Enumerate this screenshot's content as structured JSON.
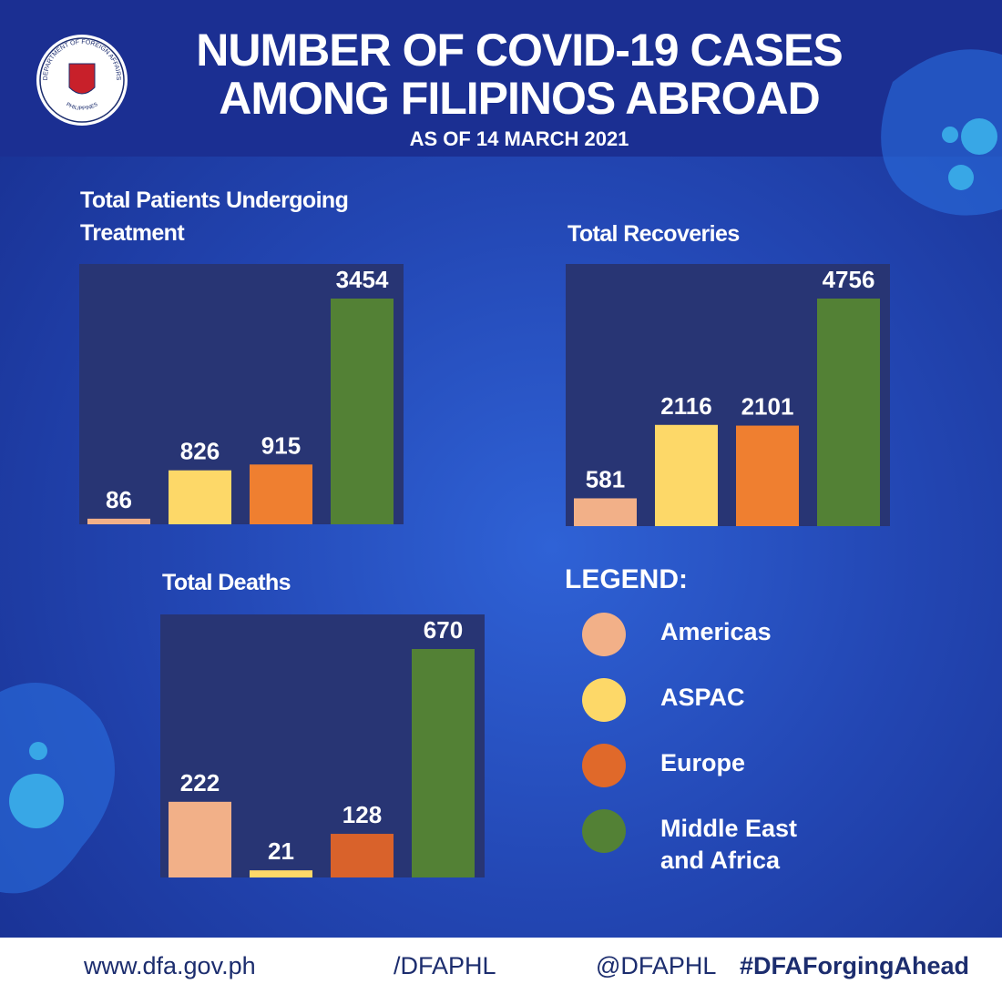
{
  "header": {
    "title_line1": "NUMBER OF  COVID-19 CASES",
    "title_line2": "AMONG FILIPINOS ABROAD",
    "subtitle": "AS OF 14 MARCH 2021",
    "seal_text": "DEPARTMENT OF FOREIGN AFFAIRS",
    "seal_country": "PHILIPPINES"
  },
  "chart_data": [
    {
      "type": "bar",
      "title": "Total Patients Undergoing Treatment",
      "values": [
        86,
        826,
        915,
        3454
      ],
      "colors": [
        "#f2b088",
        "#fdd868",
        "#ef7f30",
        "#538135"
      ]
    },
    {
      "type": "bar",
      "title": "Total Recoveries",
      "values": [
        581,
        2116,
        2101,
        4756
      ],
      "colors": [
        "#f2b088",
        "#fdd868",
        "#ef7f30",
        "#538135"
      ]
    },
    {
      "type": "bar",
      "title": "Total Deaths",
      "values": [
        222,
        21,
        128,
        670
      ],
      "colors": [
        "#f2b088",
        "#fdd868",
        "#d9622b",
        "#538135"
      ]
    }
  ],
  "legend": {
    "title": "LEGEND:",
    "items": [
      {
        "label": "Americas",
        "color": "#f2b088"
      },
      {
        "label": "ASPAC",
        "color": "#fdd868"
      },
      {
        "label": "Europe",
        "color": "#e0692a"
      },
      {
        "label": "Middle East and Africa",
        "color": "#538135"
      }
    ]
  },
  "footer": {
    "website": "www.dfa.gov.ph",
    "facebook_youtube": "/DFAPHL",
    "twitter_instagram": "@DFAPHL",
    "hashtag": "#DFAForgingAhead"
  }
}
